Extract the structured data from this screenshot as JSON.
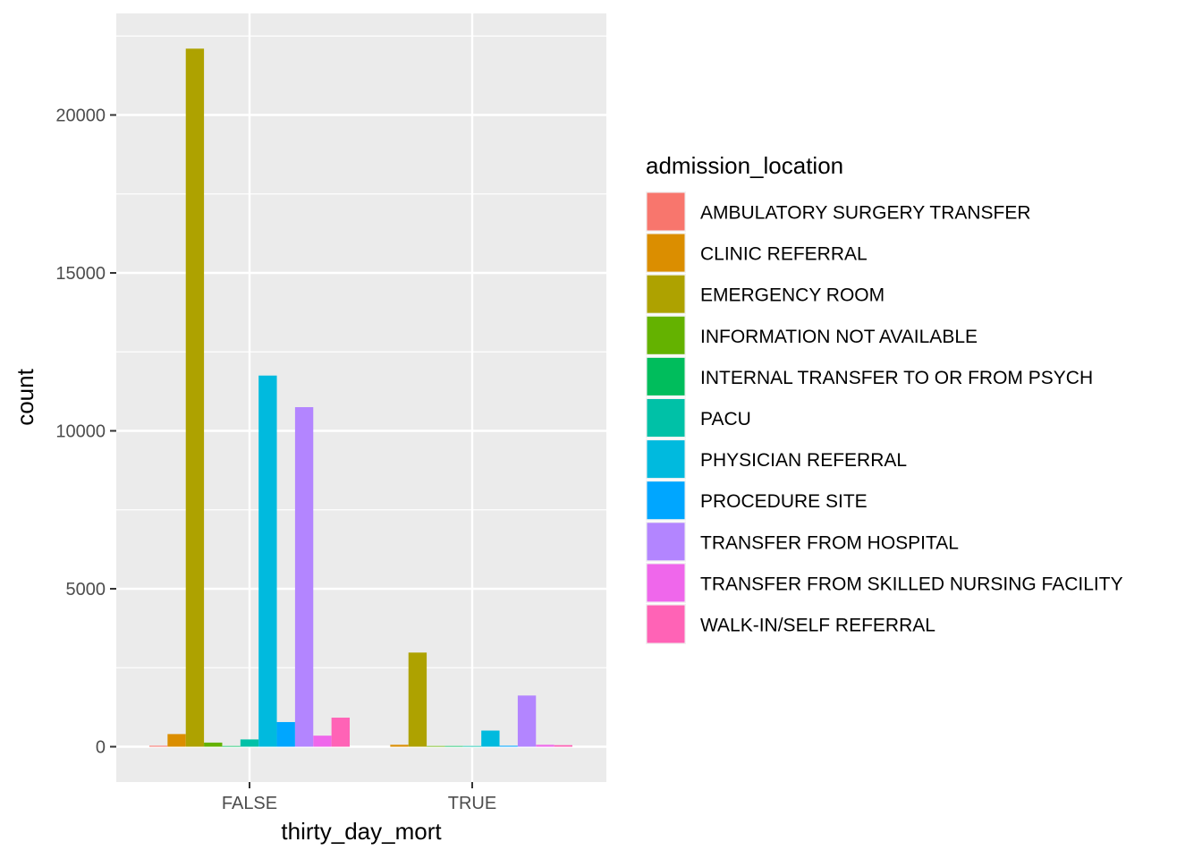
{
  "chart_data": {
    "type": "bar",
    "title": "",
    "xlabel": "thirty_day_mort",
    "ylabel": "count",
    "categories": [
      "FALSE",
      "TRUE"
    ],
    "y_ticks": [
      0,
      5000,
      10000,
      15000,
      20000
    ],
    "y_tick_labels": [
      "0",
      "5000",
      "10000",
      "15000",
      "20000"
    ],
    "ylim": [
      -1100,
      23200
    ],
    "grid": true,
    "legend": {
      "title": "admission_location",
      "position": "right"
    },
    "series": [
      {
        "name": "AMBULATORY SURGERY TRANSFER",
        "color": "#F8766D",
        "values": [
          30,
          null
        ]
      },
      {
        "name": "CLINIC REFERRAL",
        "color": "#DB8E00",
        "values": [
          400,
          60
        ]
      },
      {
        "name": "EMERGENCY ROOM",
        "color": "#AEA200",
        "values": [
          22100,
          2980
        ]
      },
      {
        "name": "INFORMATION NOT AVAILABLE",
        "color": "#64B200",
        "values": [
          130,
          15
        ]
      },
      {
        "name": "INTERNAL TRANSFER TO OR FROM PSYCH",
        "color": "#00BD5C",
        "values": [
          20,
          5
        ]
      },
      {
        "name": "PACU",
        "color": "#00C1A7",
        "values": [
          230,
          10
        ]
      },
      {
        "name": "PHYSICIAN REFERRAL",
        "color": "#00BADE",
        "values": [
          11750,
          510
        ]
      },
      {
        "name": "PROCEDURE SITE",
        "color": "#00A6FF",
        "values": [
          780,
          30
        ]
      },
      {
        "name": "TRANSFER FROM HOSPITAL",
        "color": "#B385FF",
        "values": [
          10750,
          1620
        ]
      },
      {
        "name": "TRANSFER FROM SKILLED NURSING FACILITY",
        "color": "#EF67EB",
        "values": [
          350,
          60
        ]
      },
      {
        "name": "WALK-IN/SELF REFERRAL",
        "color": "#FF63B6",
        "values": [
          920,
          50
        ]
      }
    ]
  }
}
